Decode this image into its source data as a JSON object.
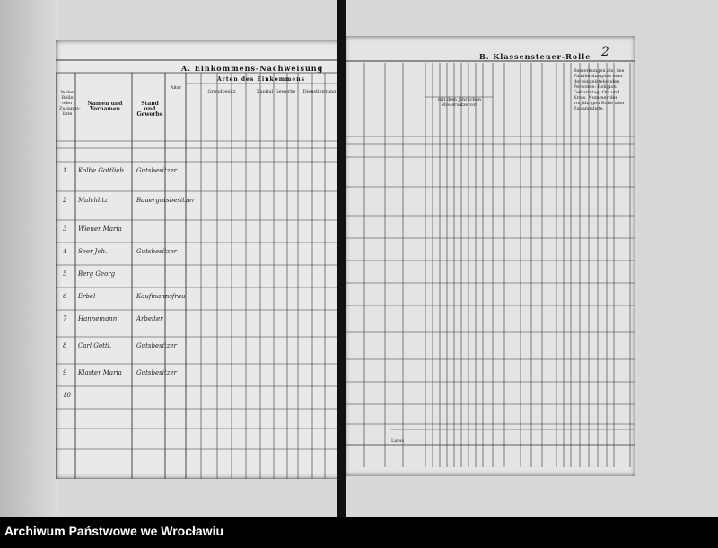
{
  "document": {
    "section_a": {
      "title": "A. Einkommens-Nachweisung",
      "subtitle": "Arten des Einkommens",
      "col_no": "№ der Rolle oder Zugangs-liste",
      "col_name": "Namen und Vornamen",
      "col_stand": "Stand und Gewerbe",
      "col_alter": "Alter",
      "groups": [
        "Grundbesitz",
        "Kapital",
        "Gewerbe",
        "Dienstleistung"
      ]
    },
    "section_b": {
      "title": "B. Klassensteuer-Rolle",
      "page_number": "2",
      "col_remarks": "Bemerkungen als: des Familienhauptes oder der einzelstehenden Personen: Religion, Geburtstag, Ort und Kreis. Nummer der vorjährigen Rolle oder Zugangsliste.",
      "col_mid": "mit dem jährlichen Steuersatze von"
    },
    "rows": [
      {
        "no": "1",
        "name": "Kolbe Gottlieb",
        "stand": "Gutsbesitzer"
      },
      {
        "no": "2",
        "name": "Malchlitz",
        "stand": "Bauergutsbesitzer"
      },
      {
        "no": "3",
        "name": "Wiener Maria",
        "stand": ""
      },
      {
        "no": "4",
        "name": "Seer Joh.",
        "stand": "Gutsbesitzer"
      },
      {
        "no": "5",
        "name": "Berg Georg",
        "stand": ""
      },
      {
        "no": "6",
        "name": "Erbel",
        "stand": "Kaufmannsfrau"
      },
      {
        "no": "7",
        "name": "Hannemann",
        "stand": "Arbeiter"
      },
      {
        "no": "8",
        "name": "Carl Gottl.",
        "stand": "Gutsbesitzer"
      },
      {
        "no": "9",
        "name": "Klaster Maria",
        "stand": "Gutsbesitzer"
      },
      {
        "no": "10",
        "name": "",
        "stand": ""
      }
    ],
    "latus_label": "Latus",
    "footer": "Archiwum Państwowe we Wrocławiu"
  }
}
